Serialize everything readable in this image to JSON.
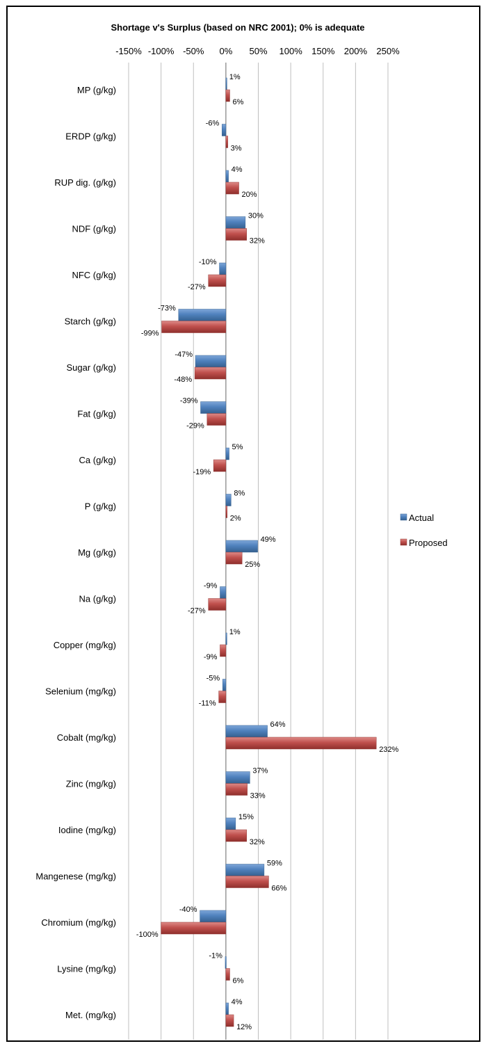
{
  "chart_data": {
    "type": "bar",
    "orientation": "horizontal",
    "title": "Shortage v's Surplus (based on NRC 2001); 0% is adequate",
    "xlim": [
      -150,
      250
    ],
    "x_tick_values": [
      -150,
      -100,
      -50,
      0,
      50,
      100,
      150,
      200,
      250
    ],
    "x_tick_labels": [
      "-150%",
      "-100%",
      "-50%",
      "0%",
      "50%",
      "100%",
      "150%",
      "200%",
      "250%"
    ],
    "x_axis_position": "top",
    "grid": true,
    "legend_position": "right",
    "categories": [
      "MP (g/kg)",
      "ERDP (g/kg)",
      "RUP dig. (g/kg)",
      "NDF (g/kg)",
      "NFC (g/kg)",
      "Starch (g/kg)",
      "Sugar (g/kg)",
      "Fat (g/kg)",
      "Ca (g/kg)",
      "P (g/kg)",
      "Mg (g/kg)",
      "Na (g/kg)",
      "Copper (mg/kg)",
      "Selenium (mg/kg)",
      "Cobalt (mg/kg)",
      "Zinc (mg/kg)",
      "Iodine (mg/kg)",
      "Mangenese (mg/kg)",
      "Chromium (mg/kg)",
      "Lysine (mg/kg)",
      "Met. (mg/kg)"
    ],
    "series": [
      {
        "name": "Actual",
        "color": "#4f81bd",
        "values": [
          1,
          -6,
          4,
          30,
          -10,
          -73,
          -47,
          -39,
          5,
          8,
          49,
          -9,
          1,
          -5,
          64,
          37,
          15,
          59,
          -40,
          -1,
          4
        ],
        "labels": [
          "1%",
          "-6%",
          "4%",
          "30%",
          "-10%",
          "-73%",
          "-47%",
          "-39%",
          "5%",
          "8%",
          "49%",
          "-9%",
          "1%",
          "-5%",
          "64%",
          "37%",
          "15%",
          "59%",
          "-40%",
          "-1%",
          "4%"
        ]
      },
      {
        "name": "Proposed",
        "color": "#c0504d",
        "values": [
          6,
          3,
          20,
          32,
          -27,
          -99,
          -48,
          -29,
          -19,
          2,
          25,
          -27,
          -9,
          -11,
          232,
          33,
          32,
          66,
          -100,
          6,
          12
        ],
        "labels": [
          "6%",
          "3%",
          "20%",
          "32%",
          "-27%",
          "-99%",
          "-48%",
          "-29%",
          "-19%",
          "2%",
          "25%",
          "-27%",
          "-9%",
          "-11%",
          "232%",
          "33%",
          "32%",
          "66%",
          "-100%",
          "6%",
          "12%"
        ]
      }
    ]
  }
}
